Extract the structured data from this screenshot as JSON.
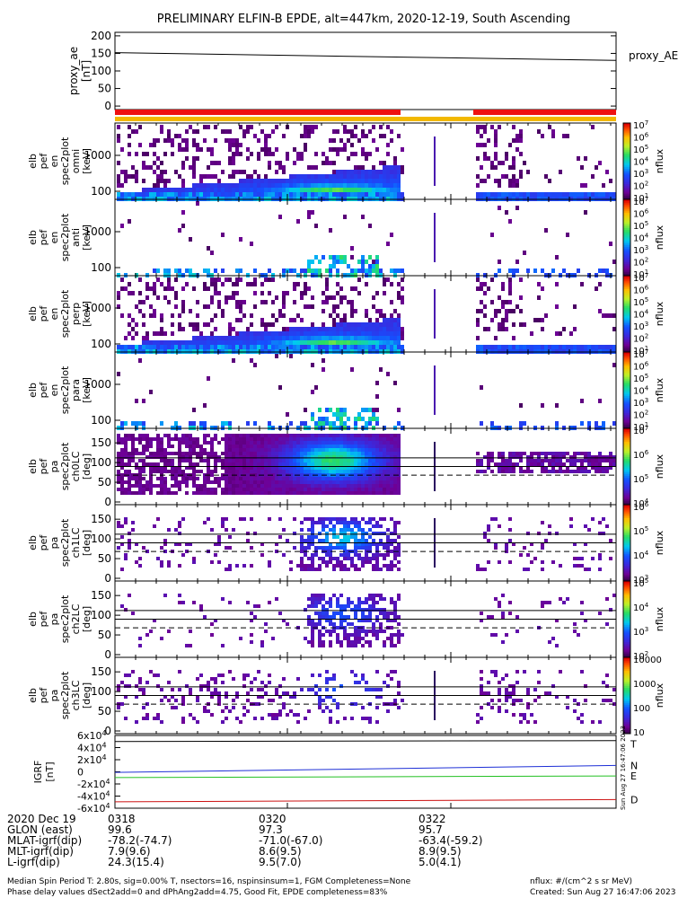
{
  "title": "PRELIMINARY ELFIN-B EPDE, alt=447km, 2020-12-19, South Ascending",
  "created": "Created: Sun Aug 27 16:47:06 2023",
  "side_stamp": "Sun Aug 27 16:47:06 2023",
  "nflux_units": "nflux: #/(cm^2 s sr MeV)",
  "notes": [
    "Median Spin Period T: 2.80s, sig=0.00% T, nsectors=16, nspinsinsum=1, FGM Completeness=None",
    "Phase delay values dSect2add=0 and dPhAng2add=4.75, Good Fit, EPDE completeness=83%"
  ],
  "colors": {
    "red_bar": "#ee1111",
    "yellow_bar": "#f2b800",
    "N": "#1d2fd6",
    "E": "#22c022",
    "D": "#cc1111",
    "T": "#000000"
  },
  "footer": {
    "rows": [
      {
        "label": "2020 Dec 19",
        "v": [
          "0318",
          "0320",
          "0322"
        ]
      },
      {
        "label": "GLON (east)",
        "v": [
          "99.6",
          "97.3",
          "95.7"
        ]
      },
      {
        "label": "MLAT-igrf(dip)",
        "v": [
          "-78.2(-74.7)",
          "-71.0(-67.0)",
          "-63.4(-59.2)"
        ]
      },
      {
        "label": "MLT-igrf(dip)",
        "v": [
          "7.9(9.6)",
          "8.6(9.5)",
          "8.9(9.5)"
        ]
      },
      {
        "label": "L-igrf(dip)",
        "v": [
          "24.3(15.4)",
          "9.5(7.0)",
          "5.0(4.1)"
        ]
      }
    ]
  },
  "chart_data": [
    {
      "type": "line",
      "panel": "proxy_ae",
      "ylabel": "proxy_ae [nT]",
      "legend": "proxy_AE",
      "ylim": [
        -10,
        210
      ],
      "yticks": [
        0,
        50,
        100,
        150,
        200
      ],
      "series": [
        {
          "name": "proxy_AE",
          "x": [
            0,
            1
          ],
          "y": [
            152,
            130
          ]
        }
      ]
    },
    {
      "type": "heatmap",
      "panel": "spec_omni",
      "ylabel": [
        "elb",
        "pef",
        "en",
        "spec2plot",
        "omni",
        "[keV]"
      ],
      "yticks": [
        "1000",
        "100"
      ],
      "cbar": [
        "10^1",
        "10^2",
        "10^3",
        "10^4",
        "10^5",
        "10^6",
        "10^7"
      ],
      "cbar_label": "nflux"
    },
    {
      "type": "heatmap",
      "panel": "spec_anti",
      "ylabel": [
        "elb",
        "pef",
        "en",
        "spec2plot",
        "anti",
        "[keV]"
      ],
      "yticks": [
        "1000",
        "100"
      ],
      "cbar": [
        "10^1",
        "10^2",
        "10^3",
        "10^4",
        "10^5",
        "10^6",
        "10^7"
      ],
      "cbar_label": "nflux"
    },
    {
      "type": "heatmap",
      "panel": "spec_perp",
      "ylabel": [
        "elb",
        "pef",
        "en",
        "spec2plot",
        "perp",
        "[keV]"
      ],
      "yticks": [
        "1000",
        "100"
      ],
      "cbar": [
        "10^1",
        "10^2",
        "10^3",
        "10^4",
        "10^5",
        "10^6",
        "10^7"
      ],
      "cbar_label": "nflux"
    },
    {
      "type": "heatmap",
      "panel": "spec_para",
      "ylabel": [
        "elb",
        "pef",
        "en",
        "spec2plot",
        "para",
        "[keV]"
      ],
      "yticks": [
        "1000",
        "100"
      ],
      "cbar": [
        "10^1",
        "10^2",
        "10^3",
        "10^4",
        "10^5",
        "10^6",
        "10^7"
      ],
      "cbar_label": "nflux"
    },
    {
      "type": "heatmap",
      "panel": "pa_ch0",
      "ylabel": [
        "elb",
        "pef",
        "pa",
        "spec2plot",
        "ch0LC",
        "[deg]"
      ],
      "yticks": [
        "150",
        "100",
        "50",
        "0"
      ],
      "cbar": [
        "10^4",
        "10^5",
        "10^6",
        "10^7"
      ],
      "cbar_label": "nflux"
    },
    {
      "type": "heatmap",
      "panel": "pa_ch1",
      "ylabel": [
        "elb",
        "pef",
        "pa",
        "spec2plot",
        "ch1LC",
        "[deg]"
      ],
      "yticks": [
        "150",
        "100",
        "50",
        "0"
      ],
      "cbar": [
        "10^3",
        "10^4",
        "10^5",
        "10^6"
      ],
      "cbar_label": "nflux"
    },
    {
      "type": "heatmap",
      "panel": "pa_ch2",
      "ylabel": [
        "elb",
        "pef",
        "pa",
        "spec2plot",
        "ch2LC",
        "[deg]"
      ],
      "yticks": [
        "150",
        "100",
        "50",
        "0"
      ],
      "cbar": [
        "10^2",
        "10^3",
        "10^4",
        "10^5"
      ],
      "cbar_label": "nflux"
    },
    {
      "type": "heatmap",
      "panel": "pa_ch3",
      "ylabel": [
        "elb",
        "pef",
        "pa",
        "spec2plot",
        "ch3LC",
        "[deg]"
      ],
      "yticks": [
        "150",
        "100",
        "50",
        "0"
      ],
      "cbar": [
        "10",
        "100",
        "1000",
        "10000"
      ],
      "cbar_label": "nflux"
    },
    {
      "type": "line",
      "panel": "igrf",
      "ylabel": "IGRF [nT]",
      "ylim": [
        -60000,
        60000
      ],
      "yticks": [
        "6x10^4",
        "4x10^4",
        "2x10^4",
        "0",
        "-2x10^4",
        "-4x10^4",
        "-6x10^4"
      ],
      "series": [
        {
          "name": "T",
          "y": [
            50000,
            51500
          ]
        },
        {
          "name": "N",
          "y": [
            -1000,
            10500
          ]
        },
        {
          "name": "E",
          "y": [
            -9500,
            -6800
          ]
        },
        {
          "name": "D",
          "y": [
            -49500,
            -45800
          ]
        }
      ]
    }
  ]
}
